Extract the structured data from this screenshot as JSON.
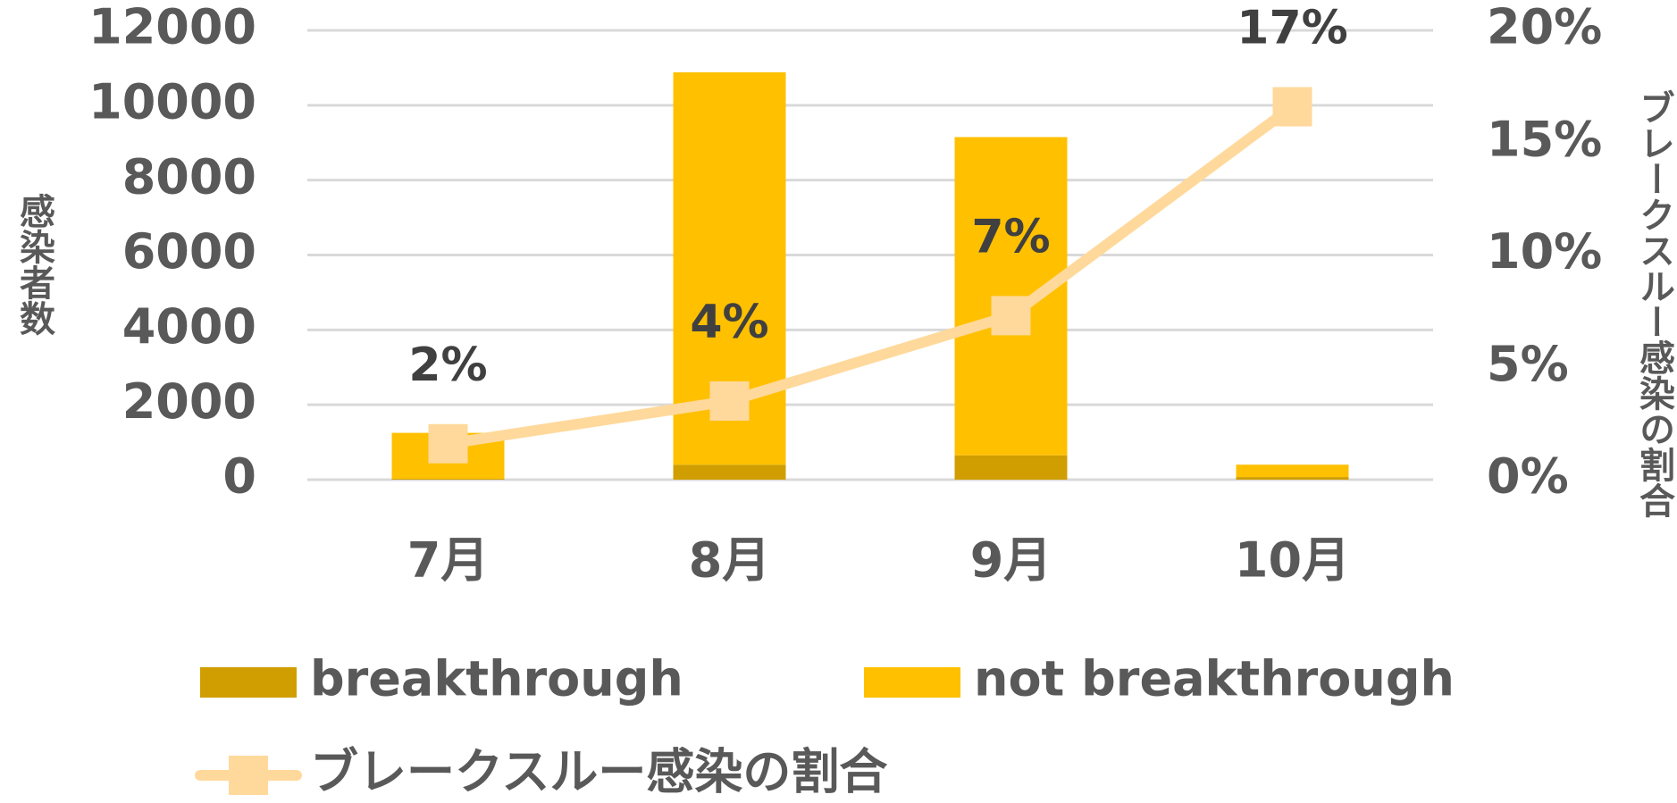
{
  "chart_data": {
    "type": "bar-line",
    "categories": [
      "7月",
      "8月",
      "9月",
      "10月"
    ],
    "series": [
      {
        "name": "breakthrough",
        "color": "#d09e00",
        "values": [
          25,
          400,
          650,
          70
        ]
      },
      {
        "name": "not breakthrough",
        "color": "#ffc000",
        "values": [
          1225,
          10480,
          8500,
          330
        ]
      },
      {
        "name": "ブレークスルー感染の割合",
        "color": "#ffd99b",
        "axis": "y2",
        "values": [
          1.6,
          3.5,
          7.3,
          16.6
        ],
        "value_labels": [
          "2%",
          "4%",
          "7%",
          "17%"
        ]
      }
    ],
    "ylabel": "感染者数",
    "y2label": "ブレークスルー感染の割合",
    "ylim": [
      0,
      12000
    ],
    "yticks": [
      0,
      2000,
      4000,
      6000,
      8000,
      10000,
      12000
    ],
    "y2lim": [
      0,
      20
    ],
    "y2ticks": [
      {
        "value": 0,
        "label": "0%"
      },
      {
        "value": 5,
        "label": "5%"
      },
      {
        "value": 10,
        "label": "10%"
      },
      {
        "value": 15,
        "label": "15%"
      },
      {
        "value": 20,
        "label": "20%"
      }
    ],
    "grid": true,
    "legend": "bottom"
  }
}
